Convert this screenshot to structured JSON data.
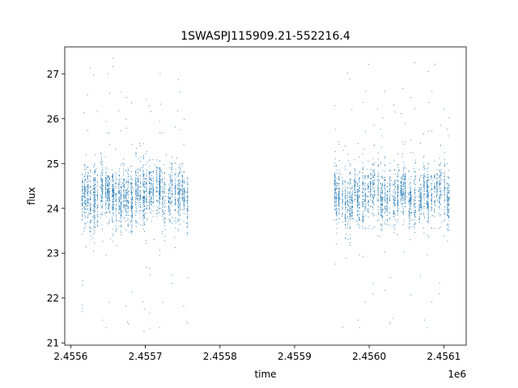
{
  "chart_data": {
    "type": "scatter",
    "title": "1SWASPJ115909.21-552216.4",
    "xlabel": "time",
    "ylabel": "flux",
    "x_offset_label": "1e6",
    "xlim": [
      2.455592,
      2.45613
    ],
    "ylim": [
      20.95,
      27.6
    ],
    "x_ticks": [
      2.4556,
      2.4557,
      2.4558,
      2.4559,
      2.456,
      2.4561
    ],
    "x_tick_labels": [
      "2.4556",
      "2.4557",
      "2.4558",
      "2.4559",
      "2.4560",
      "2.4561"
    ],
    "y_ticks": [
      21,
      22,
      23,
      24,
      25,
      26,
      27
    ],
    "y_tick_labels": [
      "21",
      "22",
      "23",
      "24",
      "25",
      "26",
      "27"
    ],
    "grid": false,
    "marker_color": "#1f77b4",
    "series": [
      {
        "x_range": [
          2.455614,
          2.455755
        ],
        "flux_center": 24.3,
        "flux_spread": 0.75,
        "flux_min": 21.2,
        "flux_max": 27.4
      },
      {
        "x_range": [
          2.455953,
          2.456107
        ],
        "flux_center": 24.3,
        "flux_spread": 0.75,
        "flux_min": 21.2,
        "flux_max": 27.45
      }
    ]
  }
}
